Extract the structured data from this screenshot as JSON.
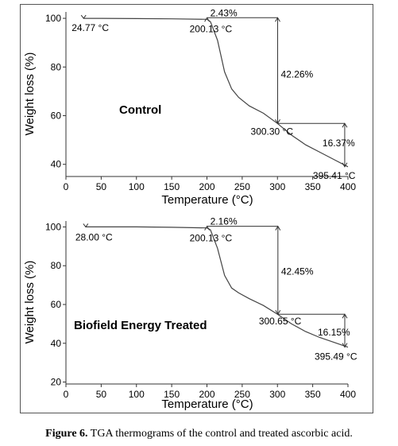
{
  "caption": {
    "label": "Figure 6.",
    "text": " TGA thermograms of the control and treated ascorbic acid."
  },
  "chart_data": [
    {
      "type": "line",
      "title": "Control",
      "xlabel": "Temperature (°C)",
      "ylabel": "Weight loss (%)",
      "xlim": [
        0,
        400
      ],
      "ylim": [
        35,
        101
      ],
      "xticks": [
        0,
        50,
        100,
        150,
        200,
        250,
        300,
        350,
        400
      ],
      "yticks": [
        40,
        60,
        80,
        100
      ],
      "grid": false,
      "series": [
        {
          "x": [
            25,
            50,
            100,
            150,
            200,
            205,
            215,
            225,
            235,
            245,
            260,
            280,
            300,
            320,
            340,
            360,
            380,
            400
          ],
          "y": [
            100,
            100,
            99.9,
            99.8,
            99.6,
            98.6,
            91,
            78,
            71,
            67.5,
            64,
            61,
            56.8,
            52,
            48,
            45,
            42,
            39
          ]
        }
      ],
      "annotations": [
        {
          "text": "24.77 °C",
          "x": 25,
          "y": 100
        },
        {
          "text": "2.43%",
          "x": 200.13,
          "y": 99.6
        },
        {
          "text": "200.13 °C",
          "x": 200.13,
          "y": 99.6
        },
        {
          "text": "42.26%",
          "x": 300.3,
          "y": 77
        },
        {
          "text": "300.30 °C",
          "x": 300.3,
          "y": 56.8
        },
        {
          "text": "16.37%",
          "x": 395.41,
          "y": 48
        },
        {
          "text": "395.41 °C",
          "x": 395.41,
          "y": 39
        }
      ]
    },
    {
      "type": "line",
      "title": "Biofield Energy Treated",
      "xlabel": "Temperature (°C)",
      "ylabel": "Weight loss (%)",
      "xlim": [
        0,
        400
      ],
      "ylim": [
        19,
        101
      ],
      "xticks": [
        0,
        50,
        100,
        150,
        200,
        250,
        300,
        350,
        400
      ],
      "yticks": [
        20,
        40,
        60,
        80,
        100
      ],
      "grid": false,
      "series": [
        {
          "x": [
            28,
            50,
            100,
            150,
            200,
            205,
            215,
            225,
            235,
            245,
            260,
            280,
            300,
            320,
            340,
            360,
            380,
            400
          ],
          "y": [
            100,
            100,
            100,
            99.8,
            99.5,
            98.5,
            89,
            75,
            68.5,
            66,
            63,
            59.5,
            55,
            50,
            46,
            43,
            40.5,
            38
          ]
        }
      ],
      "annotations": [
        {
          "text": "28.00 °C",
          "x": 28,
          "y": 100
        },
        {
          "text": "2.16%",
          "x": 200.13,
          "y": 99.5
        },
        {
          "text": "200.13 °C",
          "x": 200.13,
          "y": 99.5
        },
        {
          "text": "42.45%",
          "x": 300.65,
          "y": 77
        },
        {
          "text": "300.65 °C",
          "x": 300.65,
          "y": 55
        },
        {
          "text": "16.15%",
          "x": 395.49,
          "y": 46
        },
        {
          "text": "395.49 °C",
          "x": 395.49,
          "y": 38
        }
      ]
    }
  ]
}
